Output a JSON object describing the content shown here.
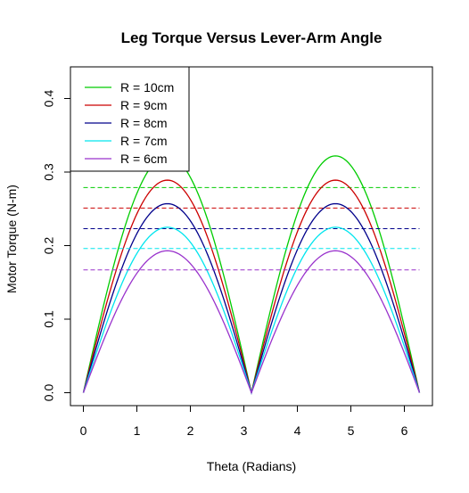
{
  "chart_data": {
    "type": "line",
    "title": "Leg Torque Versus Lever-Arm Angle",
    "xlabel": "Theta (Radians)",
    "ylabel": "Motor Torque (N-m)",
    "xlim": [
      0,
      6.2832
    ],
    "ylim": [
      0,
      0.43
    ],
    "xticks": [
      0,
      1,
      2,
      3,
      4,
      5,
      6
    ],
    "yticks": [
      0.0,
      0.1,
      0.2,
      0.3,
      0.4
    ],
    "xtick_labels": [
      "0",
      "1",
      "2",
      "3",
      "4",
      "5",
      "6"
    ],
    "ytick_labels": [
      "0.0",
      "0.1",
      "0.2",
      "0.3",
      "0.4"
    ],
    "grid": false,
    "legend_position": "top-left",
    "series": [
      {
        "name": "R = 10cm",
        "color": "#00cc00",
        "peak": 0.322,
        "mean_line": 0.279
      },
      {
        "name": "R = 9cm",
        "color": "#cc0000",
        "peak": 0.289,
        "mean_line": 0.251
      },
      {
        "name": "R = 8cm",
        "color": "#00008b",
        "peak": 0.257,
        "mean_line": 0.223
      },
      {
        "name": "R = 7cm",
        "color": "#00e5ee",
        "peak": 0.225,
        "mean_line": 0.196
      },
      {
        "name": "R = 6cm",
        "color": "#9932cc",
        "peak": 0.193,
        "mean_line": 0.167
      }
    ],
    "curve_formula": "peak * |sin(theta)|"
  }
}
